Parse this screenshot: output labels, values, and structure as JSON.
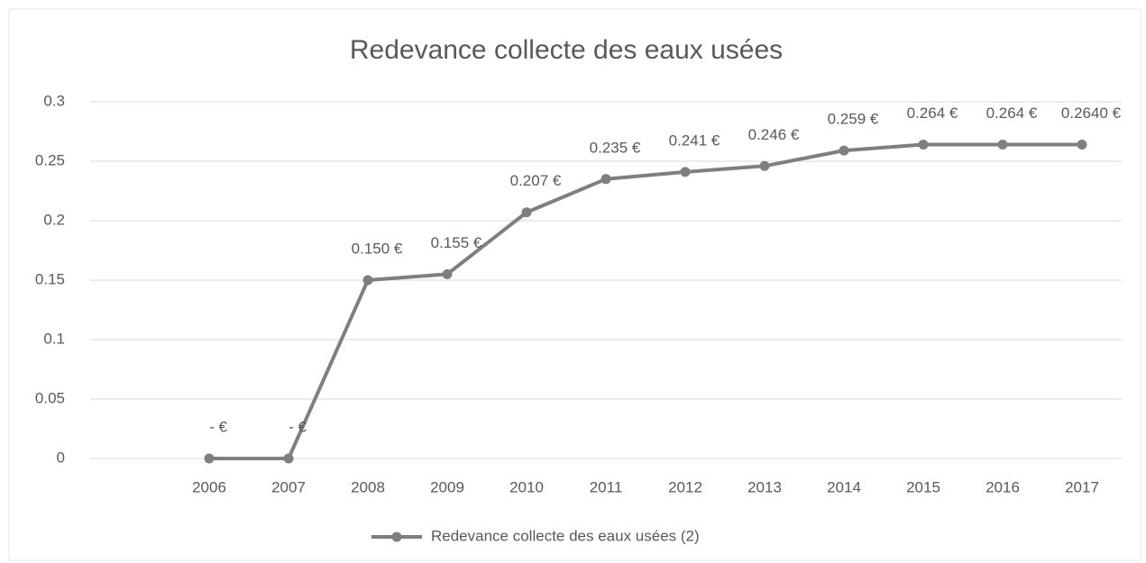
{
  "chart_data": {
    "type": "line",
    "title": "Redevance collecte des eaux usées",
    "categories": [
      null,
      "2006",
      "2007",
      "2008",
      "2009",
      "2010",
      "2011",
      "2012",
      "2013",
      "2014",
      "2015",
      "2016",
      "2017"
    ],
    "series": [
      {
        "name": "Redevance collecte des eaux usées (2)",
        "color": "#7f7f7f",
        "values": [
          null,
          0,
          0,
          0.15,
          0.155,
          0.207,
          0.235,
          0.241,
          0.246,
          0.259,
          0.264,
          0.264,
          0.264
        ],
        "value_labels": [
          null,
          "-  €",
          "-  €",
          "0.150 €",
          "0.155 €",
          "0.207 €",
          "0.235 €",
          "0.241 €",
          "0.246 €",
          "0.259 €",
          "0.264 €",
          "0.264 €",
          "0.2640 €"
        ]
      }
    ],
    "ylim": [
      0,
      0.3
    ],
    "yticks": [
      0,
      0.05,
      0.1,
      0.15,
      0.2,
      0.25,
      0.3
    ],
    "grid": true,
    "legend": "bottom"
  }
}
